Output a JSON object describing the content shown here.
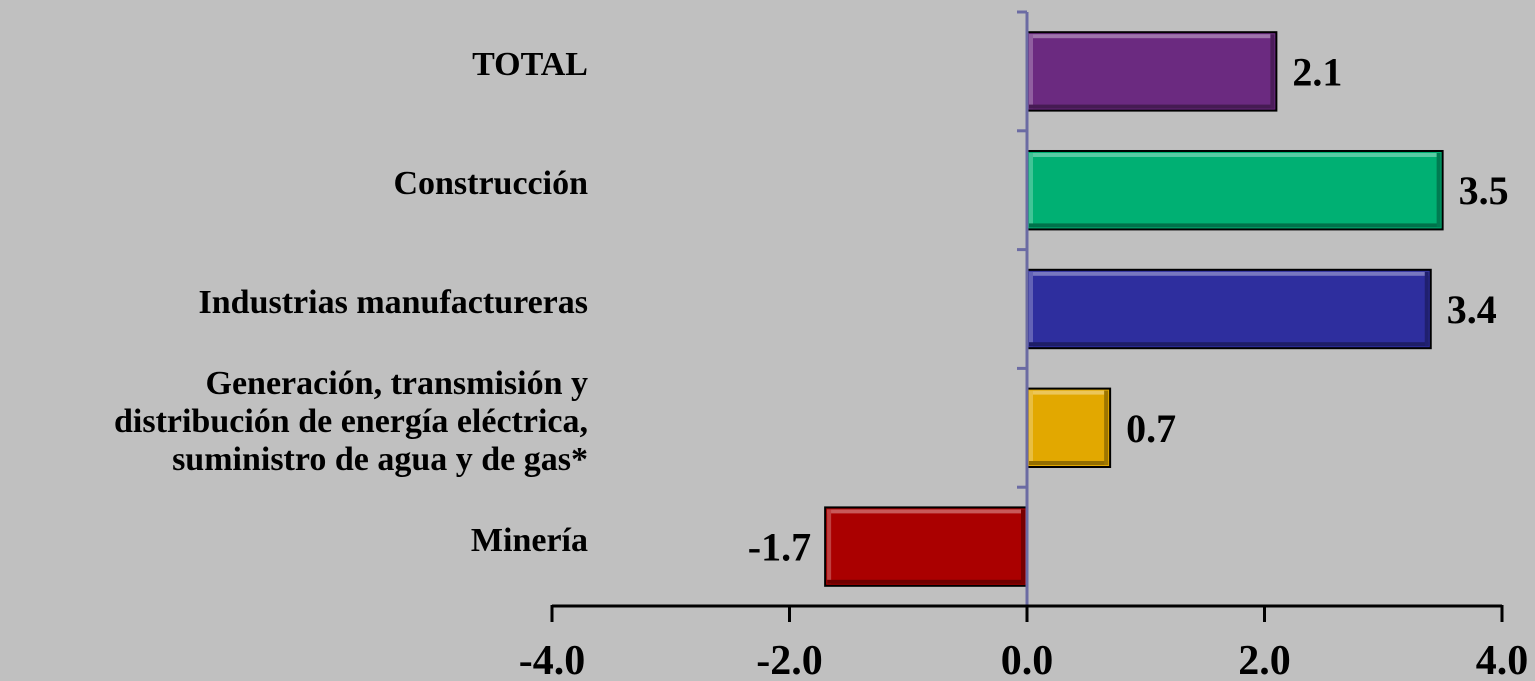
{
  "chart_data": {
    "type": "bar",
    "orientation": "horizontal",
    "categories": [
      "TOTAL",
      "Construcción",
      "Industrias manufactureras",
      "Generación, transmisión y\ndistribución de energía eléctrica,\nsuministro de agua y de gas*",
      "Minería"
    ],
    "values": [
      2.1,
      3.5,
      3.4,
      0.7,
      -1.7
    ],
    "value_labels": [
      "2.1",
      "3.5",
      "3.4",
      "0.7",
      "-1.7"
    ],
    "colors": [
      "#6b2a80",
      "#00b073",
      "#2e2e9e",
      "#e2a800",
      "#aa0000"
    ],
    "xlim": [
      -4.0,
      4.0
    ],
    "xticks": [
      -4.0,
      -2.0,
      0.0,
      2.0,
      4.0
    ],
    "xtick_labels": [
      "-4.0",
      "-2.0",
      "0.0",
      "2.0",
      "4.0"
    ],
    "grid": false,
    "legend": "none",
    "title": "",
    "xlabel": "",
    "ylabel": ""
  }
}
